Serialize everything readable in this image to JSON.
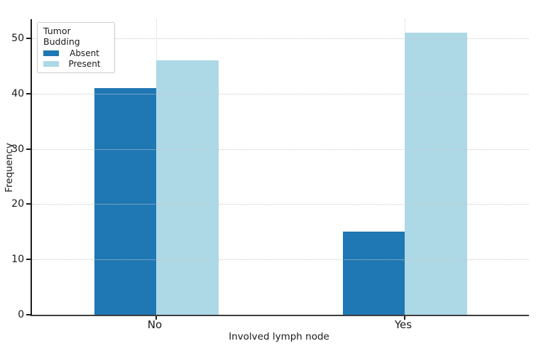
{
  "chart_data": {
    "type": "bar",
    "categories": [
      "No",
      "Yes"
    ],
    "series": [
      {
        "name": "Absent",
        "color": "#1f77b4",
        "values": [
          41,
          15
        ]
      },
      {
        "name": "Present",
        "color": "#add8e6",
        "values": [
          46,
          51
        ]
      }
    ],
    "title": "",
    "xlabel": "Involved lymph node",
    "ylabel": "Frequency",
    "ylim": [
      0,
      53.5
    ],
    "yticks": [
      0,
      10,
      20,
      30,
      40,
      50
    ],
    "grid": "dotted, horizontal lines drawn over bars, vertical at category centers",
    "legend": {
      "title": "Tumor Budding",
      "position": "upper left",
      "entries": [
        "Absent",
        "Present"
      ]
    },
    "colors": {
      "absent": "#1f77b4",
      "present": "#add8e6",
      "gridline": "#c9c9c9",
      "spine": "#2b2b2b",
      "background": "#ffffff"
    }
  }
}
